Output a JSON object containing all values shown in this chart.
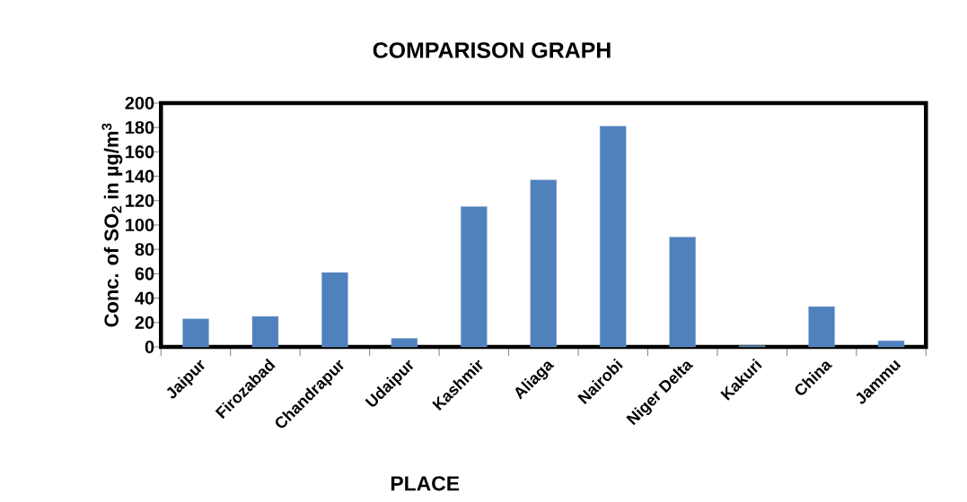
{
  "chart_data": {
    "type": "bar",
    "title": "COMPARISON GRAPH",
    "xlabel": "PLACE",
    "ylabel": "Conc. of SO$_{2}$ in µg/m$^{3}$",
    "categories": [
      "Jaipur",
      "Firozabad",
      "Chandrapur",
      "Udaipur",
      "Kashmir",
      "Aliaga",
      "Nairobi",
      "Niger Delta",
      "Kakuri",
      "China",
      "Jammu"
    ],
    "values": [
      23,
      25,
      61,
      7,
      115,
      137,
      181,
      90,
      1,
      33,
      5
    ],
    "color": "#4f81bd",
    "ylim": [
      0,
      200
    ],
    "yticks": [
      0,
      20,
      40,
      60,
      80,
      100,
      120,
      140,
      160,
      180,
      200
    ]
  }
}
